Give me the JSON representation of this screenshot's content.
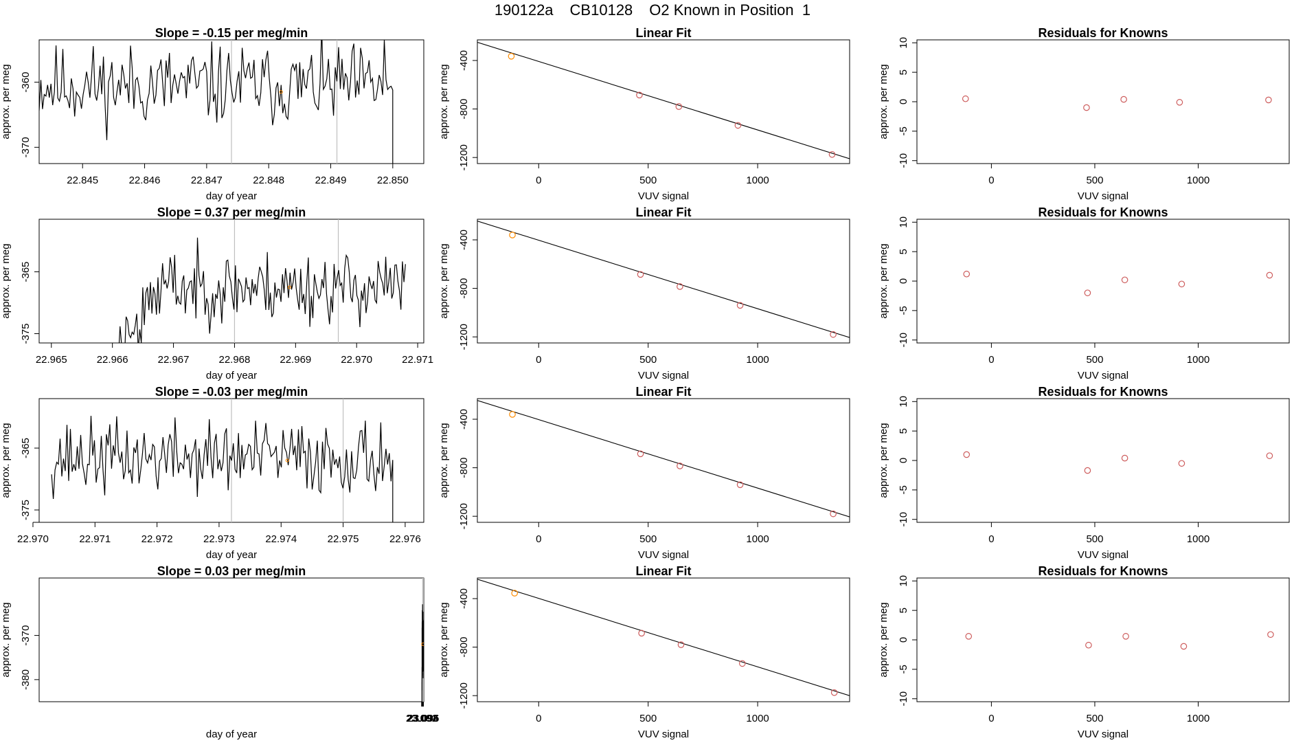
{
  "header": {
    "run_id": "190122a",
    "cylinder": "CB10128",
    "description": "O2 Known in Position  1"
  },
  "colors": {
    "trace": "#000000",
    "grid_vline": "#bebebe",
    "point": "#cd5c5c",
    "first_point": "#ff8c00"
  },
  "chart_data": [
    {
      "type": "line",
      "row": 0,
      "panel": "trace",
      "title": "Slope =  -0.15  per meg/min",
      "xlabel": "day of year",
      "ylabel": "approx. per meg",
      "xlim": [
        22.8443,
        22.8505
      ],
      "ylim": [
        -372.5,
        -353.5
      ],
      "xticks": [
        22.845,
        22.846,
        22.847,
        22.848,
        22.849,
        22.85
      ],
      "xtick_digits": 3,
      "yticks": [
        -370,
        -360
      ],
      "vlines": [
        22.8474,
        22.8491
      ],
      "marker": {
        "x": 22.8482,
        "y": -361.5
      },
      "trace": {
        "n": 210,
        "base": -360.5,
        "amp": 3.4,
        "seed": 11,
        "x0": 22.8443,
        "x1": 22.85,
        "start_frac": 0.0,
        "start_offset": 0,
        "end_spike": 7,
        "end_drop": true
      }
    },
    {
      "type": "scatter",
      "row": 0,
      "panel": "fit",
      "title": "Linear Fit",
      "xlabel": "VUV signal",
      "ylabel": "approx. per meg",
      "xlim": [
        -280,
        1420
      ],
      "ylim": [
        -1250,
        -230
      ],
      "xticks": [
        0,
        500,
        1000
      ],
      "yticks": [
        -1200,
        -800,
        -400
      ],
      "line": {
        "x": [
          -280,
          1420
        ],
        "y": [
          -250,
          -1210
        ]
      },
      "points": {
        "x": [
          -125,
          460,
          640,
          910,
          1340
        ],
        "y": [
          -365,
          -685,
          -780,
          -935,
          -1175
        ]
      }
    },
    {
      "type": "scatter",
      "row": 0,
      "panel": "resid",
      "title": "Residuals for Knowns",
      "xlabel": "VUV signal",
      "ylabel": "approx. per meg",
      "xlim": [
        -360,
        1440
      ],
      "ylim": [
        -10.5,
        10.5
      ],
      "xticks": [
        0,
        500,
        1000
      ],
      "yticks": [
        -10,
        -5,
        0,
        5,
        10
      ],
      "points": {
        "x": [
          -125,
          460,
          640,
          910,
          1340
        ],
        "y": [
          0.5,
          -1.0,
          0.4,
          -0.1,
          0.3
        ]
      }
    },
    {
      "type": "line",
      "row": 1,
      "panel": "trace",
      "title": "Slope =  0.37  per meg/min",
      "xlabel": "day of year",
      "ylabel": "approx. per meg",
      "xlim": [
        22.9648,
        22.9711
      ],
      "ylim": [
        -376.5,
        -356.5
      ],
      "xticks": [
        22.965,
        22.966,
        22.967,
        22.968,
        22.969,
        22.97,
        22.971
      ],
      "xtick_digits": 3,
      "yticks": [
        -375,
        -365
      ],
      "vlines": [
        22.968,
        22.9697
      ],
      "marker": {
        "x": 22.9689,
        "y": -367.5
      },
      "trace": {
        "n": 190,
        "base": -367.5,
        "amp": 3.2,
        "seed": 23,
        "x0": 22.9661,
        "x1": 22.9708,
        "start_frac": 0.14,
        "start_offset": -9,
        "end_spike": 0,
        "end_drop": false
      }
    },
    {
      "type": "scatter",
      "row": 1,
      "panel": "fit",
      "title": "Linear Fit",
      "xlabel": "VUV signal",
      "ylabel": "approx. per meg",
      "xlim": [
        -280,
        1420
      ],
      "ylim": [
        -1250,
        -230
      ],
      "xticks": [
        0,
        500,
        1000
      ],
      "yticks": [
        -1200,
        -800,
        -400
      ],
      "line": {
        "x": [
          -280,
          1420
        ],
        "y": [
          -245,
          -1205
        ]
      },
      "points": {
        "x": [
          -120,
          465,
          645,
          920,
          1345
        ],
        "y": [
          -360,
          -685,
          -785,
          -940,
          -1180
        ]
      }
    },
    {
      "type": "scatter",
      "row": 1,
      "panel": "resid",
      "title": "Residuals for Knowns",
      "xlabel": "VUV signal",
      "ylabel": "approx. per meg",
      "xlim": [
        -360,
        1440
      ],
      "ylim": [
        -10.5,
        10.5
      ],
      "xticks": [
        0,
        500,
        1000
      ],
      "yticks": [
        -10,
        -5,
        0,
        5,
        10
      ],
      "points": {
        "x": [
          -120,
          465,
          645,
          920,
          1345
        ],
        "y": [
          1.2,
          -2.0,
          0.2,
          -0.5,
          1.0
        ]
      }
    },
    {
      "type": "line",
      "row": 2,
      "panel": "trace",
      "title": "Slope =  -0.03  per meg/min",
      "xlabel": "day of year",
      "ylabel": "approx. per meg",
      "xlim": [
        22.9701,
        22.9763
      ],
      "ylim": [
        -377,
        -357
      ],
      "xticks": [
        22.97,
        22.971,
        22.972,
        22.973,
        22.974,
        22.975,
        22.976
      ],
      "xtick_digits": 3,
      "yticks": [
        -375,
        -365
      ],
      "vlines": [
        22.9732,
        22.975
      ],
      "marker": {
        "x": 22.9741,
        "y": -367.0
      },
      "trace": {
        "n": 200,
        "base": -366.5,
        "amp": 3.3,
        "seed": 37,
        "x0": 22.9703,
        "x1": 22.9758,
        "start_frac": 0.0,
        "start_offset": 0,
        "end_spike": 0,
        "end_drop": true
      }
    },
    {
      "type": "scatter",
      "row": 2,
      "panel": "fit",
      "title": "Linear Fit",
      "xlabel": "VUV signal",
      "ylabel": "approx. per meg",
      "xlim": [
        -280,
        1420
      ],
      "ylim": [
        -1250,
        -230
      ],
      "xticks": [
        0,
        500,
        1000
      ],
      "yticks": [
        -1200,
        -800,
        -400
      ],
      "line": {
        "x": [
          -280,
          1420
        ],
        "y": [
          -245,
          -1205
        ]
      },
      "points": {
        "x": [
          -120,
          465,
          645,
          920,
          1345
        ],
        "y": [
          -360,
          -685,
          -785,
          -940,
          -1180
        ]
      }
    },
    {
      "type": "scatter",
      "row": 2,
      "panel": "resid",
      "title": "Residuals for Knowns",
      "xlabel": "VUV signal",
      "ylabel": "approx. per meg",
      "xlim": [
        -360,
        1440
      ],
      "ylim": [
        -10.5,
        10.5
      ],
      "xticks": [
        0,
        500,
        1000
      ],
      "yticks": [
        -10,
        -5,
        0,
        5,
        10
      ],
      "points": {
        "x": [
          -120,
          465,
          645,
          920,
          1345
        ],
        "y": [
          1.0,
          -1.7,
          0.4,
          -0.5,
          0.8
        ]
      }
    },
    {
      "type": "line",
      "row": 3,
      "panel": "trace",
      "title": "Slope =  0.03  per meg/min",
      "xlabel": "day of year",
      "ylabel": "approx. per meg",
      "xlim": [
        22.0906,
        23.0968
      ],
      "ylim": [
        -385,
        -357
      ],
      "xticks": [
        23.091,
        23.092,
        23.093,
        23.094,
        23.095,
        23.096
      ],
      "xtick_digits": 3,
      "yticks": [
        -380,
        -370
      ],
      "vlines": [
        23.0938,
        23.0956
      ],
      "marker": {
        "x": 23.0947,
        "y": -372.0
      },
      "trace": {
        "n": 180,
        "base": -371.5,
        "amp": 3.8,
        "seed": 53,
        "x0": 23.0919,
        "x1": 23.0967,
        "start_frac": 0.08,
        "start_offset": -12,
        "end_spike": 0,
        "end_drop": false
      }
    },
    {
      "type": "scatter",
      "row": 3,
      "panel": "fit",
      "title": "Linear Fit",
      "xlabel": "VUV signal",
      "ylabel": "approx. per meg",
      "xlim": [
        -280,
        1420
      ],
      "ylim": [
        -1250,
        -230
      ],
      "xticks": [
        0,
        500,
        1000
      ],
      "yticks": [
        -1200,
        -800,
        -400
      ],
      "line": {
        "x": [
          -280,
          1420
        ],
        "y": [
          -240,
          -1200
        ]
      },
      "points": {
        "x": [
          -110,
          470,
          650,
          930,
          1350
        ],
        "y": [
          -355,
          -685,
          -780,
          -935,
          -1175
        ]
      }
    },
    {
      "type": "scatter",
      "row": 3,
      "panel": "resid",
      "title": "Residuals for Knowns",
      "xlabel": "VUV signal",
      "ylabel": "approx. per meg",
      "xlim": [
        -360,
        1440
      ],
      "ylim": [
        -10.5,
        10.5
      ],
      "xticks": [
        0,
        500,
        1000
      ],
      "yticks": [
        -10,
        -5,
        0,
        5,
        10
      ],
      "points": {
        "x": [
          -110,
          470,
          650,
          930,
          1350
        ],
        "y": [
          0.6,
          -0.9,
          0.6,
          -1.1,
          0.9
        ]
      }
    }
  ]
}
